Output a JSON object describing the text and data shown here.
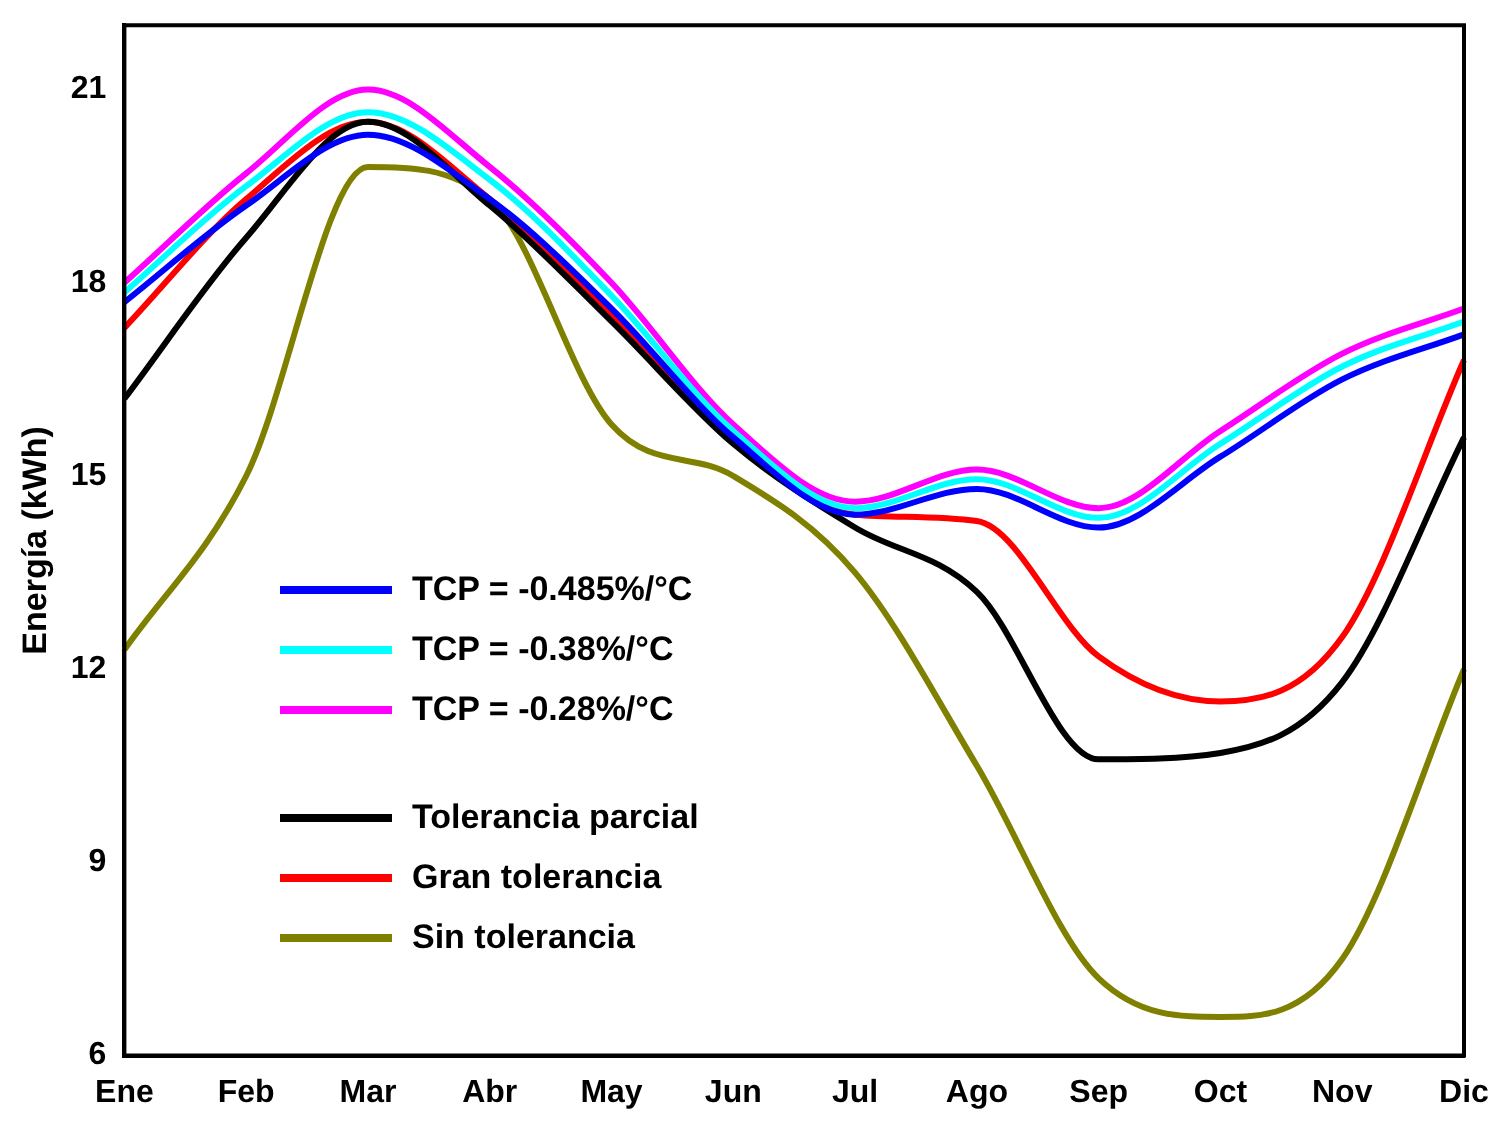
{
  "chart_data": {
    "type": "line",
    "ylabel": "Energía (kWh)",
    "categories": [
      "Ene",
      "Feb",
      "Mar",
      "Abr",
      "May",
      "Jun",
      "Jul",
      "Ago",
      "Sep",
      "Oct",
      "Nov",
      "Dic"
    ],
    "ylim": [
      6,
      22
    ],
    "yticks": [
      6,
      9,
      12,
      15,
      18,
      21
    ],
    "legend": "left",
    "marker": "none",
    "series": [
      {
        "name": "TCP = -0.485%/°C",
        "color": "#0000ff",
        "values": [
          17.7,
          19.2,
          20.3,
          19.3,
          17.6,
          15.6,
          14.4,
          14.8,
          14.2,
          15.3,
          16.5,
          17.2
        ]
      },
      {
        "name": "TCP = -0.38%/°C",
        "color": "#00ffff",
        "values": [
          17.85,
          19.5,
          20.65,
          19.6,
          17.8,
          15.7,
          14.5,
          14.95,
          14.35,
          15.5,
          16.7,
          17.4
        ]
      },
      {
        "name": "TCP = -0.28%/°C",
        "color": "#ff00ff",
        "values": [
          18.0,
          19.7,
          21.0,
          19.8,
          18.0,
          15.8,
          14.6,
          15.1,
          14.5,
          15.7,
          16.9,
          17.6
        ]
      },
      {
        "name": "Tolerancia parcial",
        "color": "#000000",
        "values": [
          16.2,
          18.7,
          20.5,
          19.2,
          17.4,
          15.5,
          14.2,
          13.2,
          10.6,
          10.7,
          11.8,
          15.6
        ]
      },
      {
        "name": "Gran tolerancia",
        "color": "#ff0000",
        "values": [
          17.3,
          19.3,
          20.5,
          19.3,
          17.5,
          15.6,
          14.4,
          14.3,
          12.2,
          11.5,
          12.5,
          16.8
        ]
      },
      {
        "name": "Sin tolerancia",
        "color": "#808000",
        "values": [
          12.3,
          15.0,
          19.8,
          19.3,
          15.8,
          15.0,
          13.5,
          10.5,
          7.2,
          6.6,
          7.5,
          12.0
        ]
      }
    ]
  }
}
